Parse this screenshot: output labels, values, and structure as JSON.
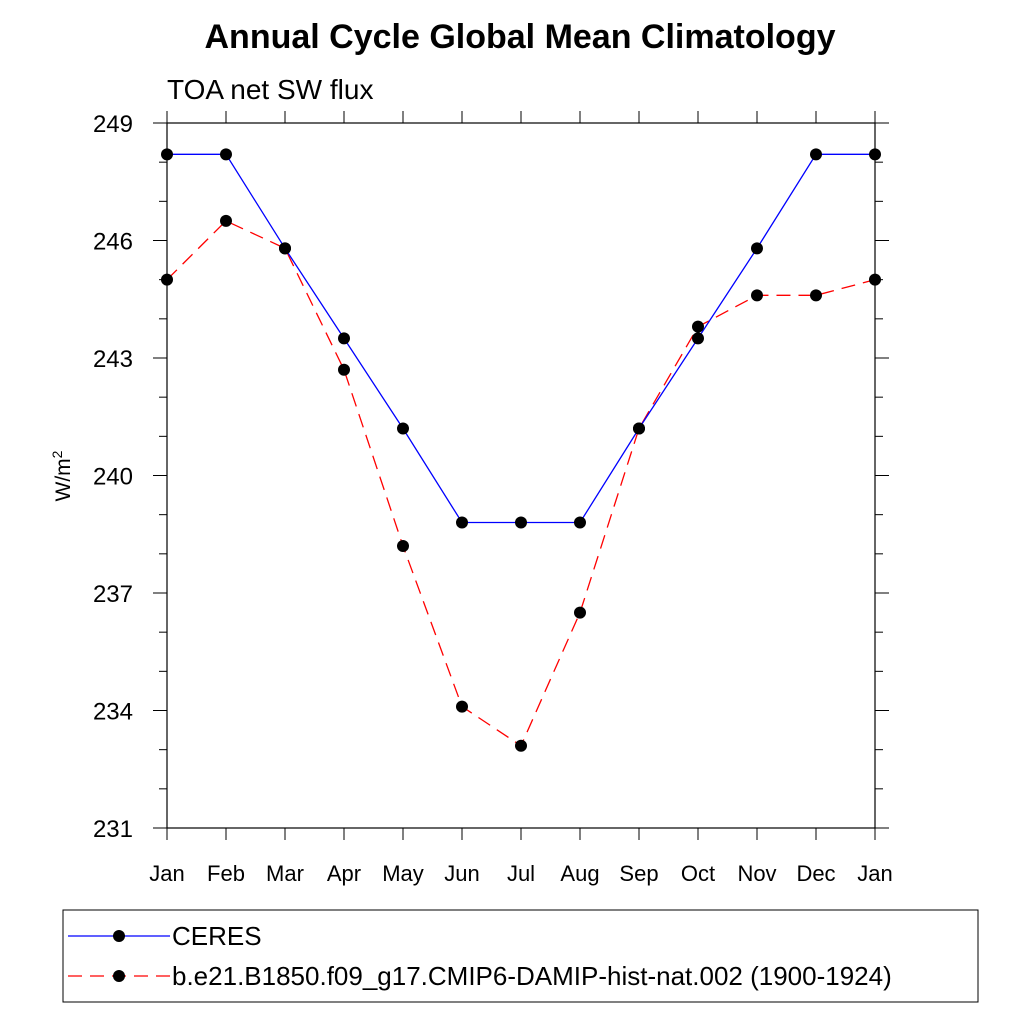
{
  "chart_data": {
    "type": "line",
    "title": "Annual Cycle Global Mean Climatology",
    "subtitle": "TOA net SW flux",
    "ylabel_base": "W/m",
    "ylabel_sup": "2",
    "categories": [
      "Jan",
      "Feb",
      "Mar",
      "Apr",
      "May",
      "Jun",
      "Jul",
      "Aug",
      "Sep",
      "Oct",
      "Nov",
      "Dec",
      "Jan"
    ],
    "ylim": [
      231,
      249
    ],
    "yticks": [
      "231",
      "234",
      "237",
      "240",
      "243",
      "246",
      "249"
    ],
    "series": [
      {
        "name": "CERES",
        "color": "#0000ff",
        "style": "solid",
        "values": [
          248.2,
          248.2,
          245.8,
          243.5,
          241.2,
          238.8,
          238.8,
          238.8,
          241.2,
          243.5,
          245.8,
          248.2,
          248.2
        ]
      },
      {
        "name": "b.e21.B1850.f09_g17.CMIP6-DAMIP-hist-nat.002 (1900-1924)",
        "color": "#ff0000",
        "style": "dashed",
        "values": [
          245.0,
          246.5,
          245.8,
          242.7,
          238.2,
          234.1,
          233.1,
          236.5,
          241.2,
          243.8,
          244.6,
          244.6,
          245.0
        ]
      }
    ]
  }
}
